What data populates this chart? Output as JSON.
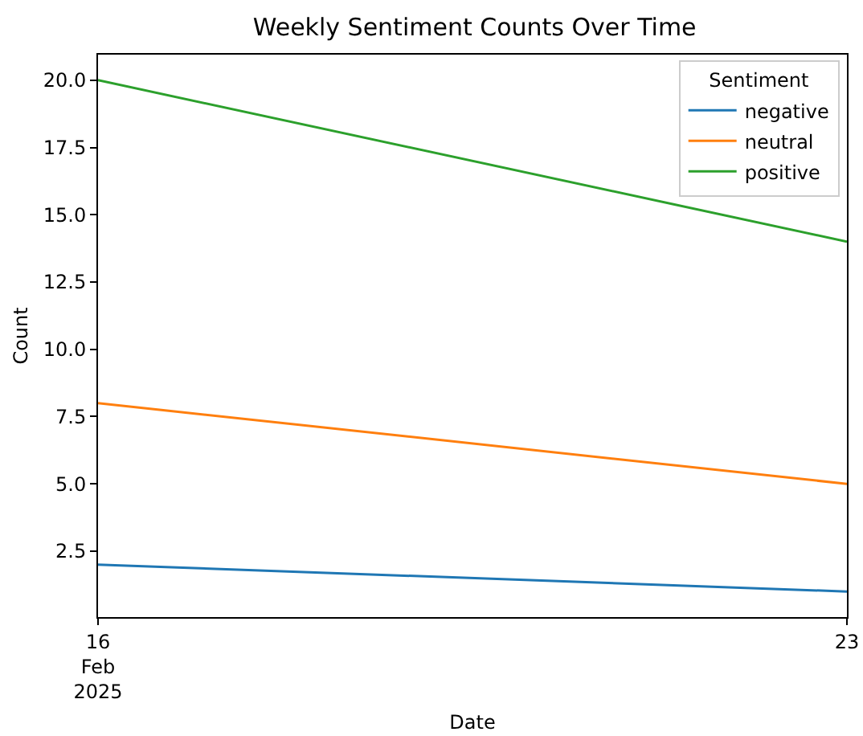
{
  "chart_data": {
    "type": "line",
    "title": "Weekly Sentiment Counts Over Time",
    "xlabel": "Date",
    "ylabel": "Count",
    "legend_title": "Sentiment",
    "x": [
      "2025-02-16",
      "2025-02-23"
    ],
    "series": [
      {
        "name": "negative",
        "color": "#1f77b4",
        "values": [
          2,
          1
        ]
      },
      {
        "name": "neutral",
        "color": "#ff7f0e",
        "values": [
          8,
          5
        ]
      },
      {
        "name": "positive",
        "color": "#2ca02c",
        "values": [
          20,
          14
        ]
      }
    ],
    "xlim": [
      "2025-02-16",
      "2025-02-23"
    ],
    "xticks": [
      {
        "value": "2025-02-16",
        "label": "16\nFeb\n2025"
      },
      {
        "value": "2025-02-23",
        "label": "23"
      }
    ],
    "ylim": [
      0.05,
      20.95
    ],
    "yticks": [
      2.5,
      {
        "value": 5,
        "label": "5.0"
      },
      7.5,
      {
        "value": 10,
        "label": "10.0"
      },
      12.5,
      {
        "value": 15,
        "label": "15.0"
      },
      17.5,
      {
        "value": 20,
        "label": "20.0"
      }
    ],
    "grid": false,
    "legend": "top right",
    "marker": "none",
    "line_style": "solid"
  }
}
